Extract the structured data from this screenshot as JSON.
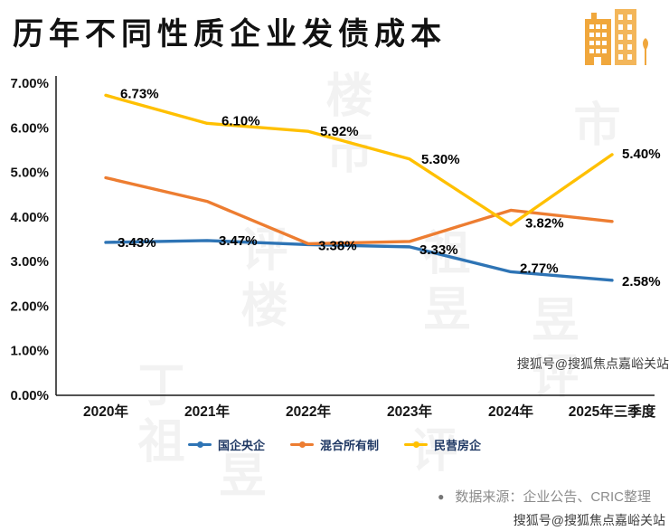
{
  "header": {
    "title": "历年不同性质企业发债成本"
  },
  "logo": {
    "label": "buildings-logo",
    "color": "#F0A73C"
  },
  "chart_data": {
    "type": "line",
    "title": "历年不同性质企业发债成本",
    "categories": [
      "2020年",
      "2021年",
      "2022年",
      "2023年",
      "2024年",
      "2025年三季度"
    ],
    "series": [
      {
        "name": "国企央企",
        "color": "#2E74B5",
        "values": [
          3.43,
          3.47,
          3.38,
          3.33,
          2.77,
          2.58
        ],
        "labels": [
          "3.43%",
          "3.47%",
          "3.38%",
          "3.33%",
          "2.77%",
          "2.58%"
        ],
        "label_offsets": [
          [
            13,
            0
          ],
          [
            13,
            0
          ],
          [
            11,
            1
          ],
          [
            11,
            3
          ],
          [
            10,
            -4
          ],
          [
            11,
            1
          ]
        ]
      },
      {
        "name": "混合所有制",
        "color": "#ED7D31",
        "values": [
          4.88,
          4.35,
          3.4,
          3.45,
          4.15,
          3.9
        ],
        "labels": [
          "",
          "",
          "",
          "",
          "",
          ""
        ],
        "label_offsets": [
          [
            0,
            0
          ],
          [
            0,
            0
          ],
          [
            0,
            0
          ],
          [
            0,
            0
          ],
          [
            0,
            0
          ],
          [
            0,
            0
          ]
        ]
      },
      {
        "name": "民营房企",
        "color": "#FFC000",
        "values": [
          6.73,
          6.1,
          5.92,
          5.3,
          3.82,
          5.4
        ],
        "labels": [
          "6.73%",
          "6.10%",
          "5.92%",
          "5.30%",
          "3.82%",
          "5.40%"
        ],
        "label_offsets": [
          [
            16,
            -2
          ],
          [
            16,
            -3
          ],
          [
            13,
            0
          ],
          [
            13,
            0
          ],
          [
            16,
            -2
          ],
          [
            11,
            -1
          ]
        ]
      }
    ],
    "ylim": [
      0,
      7
    ],
    "ytick_step": 1,
    "ytick_labels": [
      "0.00%",
      "1.00%",
      "2.00%",
      "3.00%",
      "4.00%",
      "5.00%",
      "6.00%",
      "7.00%"
    ],
    "xlabel": "",
    "ylabel": "",
    "grid": false,
    "legend_position": "bottom"
  },
  "footer": {
    "bullet": "●",
    "source": "数据来源：企业公告、CRIC整理"
  },
  "watermark": {
    "sohu": "搜狐号@搜狐焦点嘉峪关站",
    "columns": [
      "丁祖",
      "评楼",
      "楼市",
      "祖昱",
      "昱评",
      "市",
      "昱",
      "评"
    ]
  }
}
